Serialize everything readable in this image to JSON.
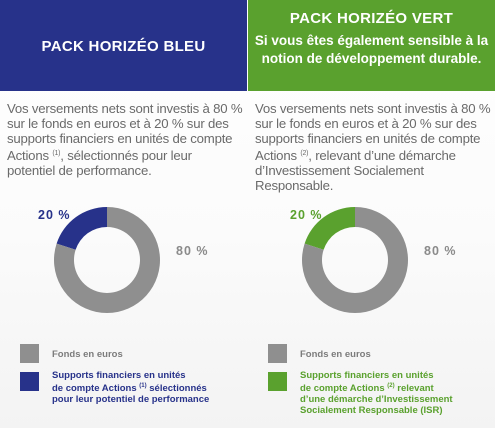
{
  "pack_bleu": {
    "title": "PACK HORIZÉO BLEU",
    "desc_1": "Vos versements nets sont investis à 80 % sur le fonds en euros et à 20 % sur des supports financiers en unités de compte Actions",
    "desc_note": "(1)",
    "desc_2": ", sélectionnés pour leur potentiel de performance.",
    "pct_small": "20 %",
    "pct_big": "80 %",
    "legend_gray": "Fonds en euros",
    "legend_color_1": "Supports financiers en unités",
    "legend_color_2a": "de compte Actions ",
    "legend_color_note": "(1)",
    "legend_color_2b": " sélectionnés",
    "legend_color_3": "pour leur potentiel de performance",
    "colors": {
      "accent": "#27328a",
      "gray": "#8f8f8f"
    }
  },
  "pack_vert": {
    "title": "PACK HORIZÉO VERT",
    "subtitle": "Si vous êtes également sensible à la notion de développement durable.",
    "desc_1": "Vos versements nets sont investis à 80 % sur le fonds en euros et à 20 % sur des supports financiers en unités de compte Actions",
    "desc_note": "(2)",
    "desc_2": ", relevant d’une démarche d’Investissement Socialement Responsable.",
    "pct_small": "20 %",
    "pct_big": "80 %",
    "legend_gray": "Fonds en euros",
    "legend_color_1": "Supports financiers en unités",
    "legend_color_2a": "de compte Actions ",
    "legend_color_note": "(2)",
    "legend_color_2b": " relevant",
    "legend_color_3": "d’une démarche d’Investissement",
    "legend_color_4": "Socialement Responsable (ISR)",
    "colors": {
      "accent": "#5aa12e",
      "gray": "#8f8f8f"
    }
  },
  "chart_data": [
    {
      "type": "pie",
      "variant": "donut",
      "categories": [
        "Fonds en euros",
        "Supports financiers en unités de compte Actions"
      ],
      "values": [
        80,
        20
      ],
      "colors": [
        "#8f8f8f",
        "#27328a"
      ]
    },
    {
      "type": "pie",
      "variant": "donut",
      "categories": [
        "Fonds en euros",
        "Supports financiers en unités de compte Actions"
      ],
      "values": [
        80,
        20
      ],
      "colors": [
        "#8f8f8f",
        "#5aa12e"
      ]
    }
  ]
}
